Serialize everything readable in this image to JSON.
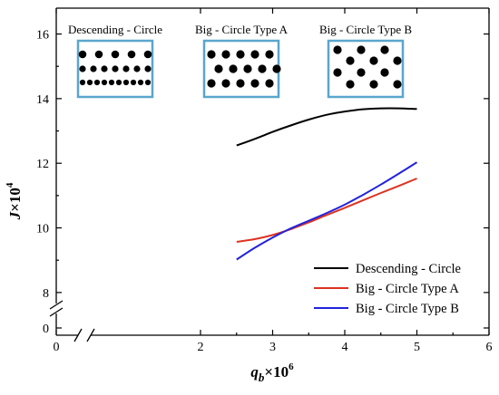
{
  "chart_data": {
    "type": "line",
    "title": "",
    "xlabel": {
      "var": "q",
      "sub": "b",
      "times": "×10",
      "exp": "6"
    },
    "ylabel": {
      "var": "J",
      "times": "×10",
      "exp": "4"
    },
    "xlim": [
      0,
      6
    ],
    "x_ticks": [
      "0",
      "2",
      "3",
      "4",
      "5",
      "6"
    ],
    "ylim_upper": [
      7.8,
      16.8
    ],
    "y_ticks": [
      "0",
      "8",
      "10",
      "12",
      "14",
      "16"
    ],
    "grid": false,
    "legend_position": "lower-right",
    "series": [
      {
        "name": "Descending - Circle",
        "color": "#000000",
        "x": [
          2.5,
          2.75,
          3.0,
          3.25,
          3.5,
          3.75,
          4.0,
          4.25,
          4.5,
          4.75,
          5.0
        ],
        "y": [
          12.55,
          12.75,
          12.97,
          13.17,
          13.35,
          13.5,
          13.6,
          13.67,
          13.7,
          13.7,
          13.68
        ]
      },
      {
        "name": "Big - Circle Type A",
        "color": "#dd3322",
        "x": [
          2.5,
          2.75,
          3.0,
          3.25,
          3.5,
          3.75,
          4.0,
          4.25,
          4.5,
          4.75,
          5.0
        ],
        "y": [
          9.57,
          9.65,
          9.78,
          9.96,
          10.17,
          10.4,
          10.62,
          10.85,
          11.08,
          11.3,
          11.53
        ]
      },
      {
        "name": "Big - Circle Type B",
        "color": "#2222dd",
        "x": [
          2.5,
          2.75,
          3.0,
          3.25,
          3.5,
          3.75,
          4.0,
          4.25,
          4.5,
          4.75,
          5.0
        ],
        "y": [
          9.02,
          9.38,
          9.7,
          9.98,
          10.22,
          10.46,
          10.72,
          11.02,
          11.34,
          11.68,
          12.03
        ]
      }
    ],
    "insets": [
      {
        "label": "Descending - Circle",
        "pattern": "descending"
      },
      {
        "label": "Big - Circle Type A",
        "pattern": "typeA"
      },
      {
        "label": "Big - Circle Type B",
        "pattern": "typeB"
      }
    ],
    "inset_frame_color": "#5aa6cc"
  }
}
